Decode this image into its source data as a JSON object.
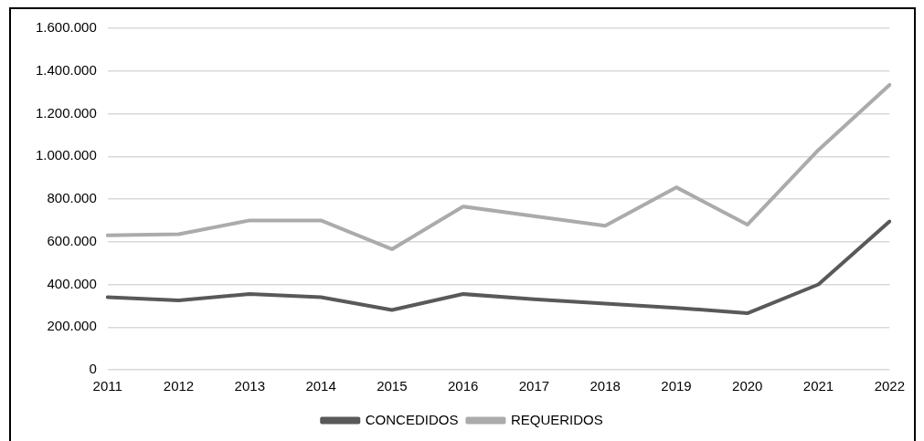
{
  "chart_data": {
    "type": "line",
    "categories": [
      "2011",
      "2012",
      "2013",
      "2014",
      "2015",
      "2016",
      "2017",
      "2018",
      "2019",
      "2020",
      "2021",
      "2022"
    ],
    "series": [
      {
        "name": "CONCEDIDOS",
        "color": "#595959",
        "values": [
          340000,
          325000,
          355000,
          340000,
          280000,
          355000,
          330000,
          310000,
          290000,
          265000,
          400000,
          695000
        ]
      },
      {
        "name": "REQUERIDOS",
        "color": "#ababab",
        "values": [
          630000,
          635000,
          700000,
          700000,
          565000,
          765000,
          720000,
          675000,
          855000,
          680000,
          1030000,
          1335000
        ]
      }
    ],
    "ylim": [
      0,
      1600000
    ],
    "yticks": [
      {
        "value": 0,
        "label": "0"
      },
      {
        "value": 200000,
        "label": "200.000"
      },
      {
        "value": 400000,
        "label": "400.000"
      },
      {
        "value": 600000,
        "label": "600.000"
      },
      {
        "value": 800000,
        "label": "800.000"
      },
      {
        "value": 1000000,
        "label": "1.000.000"
      },
      {
        "value": 1200000,
        "label": "1.200.000"
      },
      {
        "value": 1400000,
        "label": "1.400.000"
      },
      {
        "value": 1600000,
        "label": "1.600.000"
      }
    ],
    "grid": "y",
    "legend": "bottom",
    "marker": "none",
    "line_style": "solid"
  }
}
